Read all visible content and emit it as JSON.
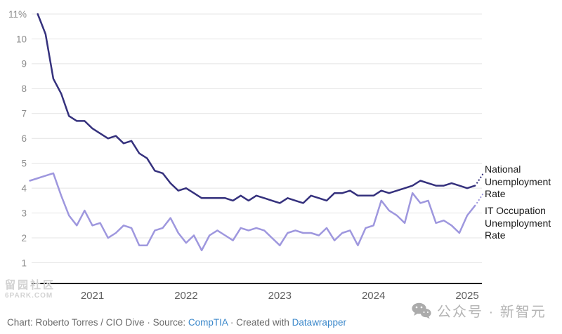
{
  "chart_data": {
    "type": "line",
    "title": "",
    "grid": "horizontal",
    "legend_position": "right-edge-labels",
    "x_tick_labels": [
      "2021",
      "2022",
      "2023",
      "2024",
      "2025"
    ],
    "y_axis": {
      "min": 1,
      "max": 11,
      "unit": "%",
      "ticks": [
        {
          "value": 11,
          "label": "11%"
        },
        {
          "value": 10,
          "label": "10"
        },
        {
          "value": 9,
          "label": "9"
        },
        {
          "value": 8,
          "label": "8"
        },
        {
          "value": 7,
          "label": "7"
        },
        {
          "value": 6,
          "label": "6"
        },
        {
          "value": 5,
          "label": "5"
        },
        {
          "value": 4,
          "label": "4"
        },
        {
          "value": 3,
          "label": "3"
        },
        {
          "value": 2,
          "label": "2"
        },
        {
          "value": 1,
          "label": "1"
        }
      ]
    },
    "x_ticks": [
      {
        "month_index": 8,
        "label": "2021"
      },
      {
        "month_index": 20,
        "label": "2022"
      },
      {
        "month_index": 32,
        "label": "2023"
      },
      {
        "month_index": 44,
        "label": "2024"
      },
      {
        "month_index": 56,
        "label": "2025"
      }
    ],
    "months": [
      "2020-05",
      "2020-06",
      "2020-07",
      "2020-08",
      "2020-09",
      "2020-10",
      "2020-11",
      "2020-12",
      "2021-01",
      "2021-02",
      "2021-03",
      "2021-04",
      "2021-05",
      "2021-06",
      "2021-07",
      "2021-08",
      "2021-09",
      "2021-10",
      "2021-11",
      "2021-12",
      "2022-01",
      "2022-02",
      "2022-03",
      "2022-04",
      "2022-05",
      "2022-06",
      "2022-07",
      "2022-08",
      "2022-09",
      "2022-10",
      "2022-11",
      "2022-12",
      "2023-01",
      "2023-02",
      "2023-03",
      "2023-04",
      "2023-05",
      "2023-06",
      "2023-07",
      "2023-08",
      "2023-09",
      "2023-10",
      "2023-11",
      "2023-12",
      "2024-01",
      "2024-02",
      "2024-03",
      "2024-04",
      "2024-05",
      "2024-06",
      "2024-07",
      "2024-08",
      "2024-09",
      "2024-10",
      "2024-11",
      "2024-12",
      "2025-01",
      "2025-02"
    ],
    "series": [
      {
        "name": "National Unemployment Rate",
        "color": "#35317D",
        "label_lines": [
          "National",
          "Unemployment",
          "Rate"
        ],
        "values": [
          null,
          11.0,
          10.2,
          8.4,
          7.8,
          6.9,
          6.7,
          6.7,
          6.4,
          6.2,
          6.0,
          6.1,
          5.8,
          5.9,
          5.4,
          5.2,
          4.7,
          4.6,
          4.2,
          3.9,
          4.0,
          3.8,
          3.6,
          3.6,
          3.6,
          3.6,
          3.5,
          3.7,
          3.5,
          3.7,
          3.6,
          3.5,
          3.4,
          3.6,
          3.5,
          3.4,
          3.7,
          3.6,
          3.5,
          3.8,
          3.8,
          3.9,
          3.7,
          3.7,
          3.7,
          3.9,
          3.8,
          3.9,
          4.0,
          4.1,
          4.3,
          4.2,
          4.1,
          4.1,
          4.2,
          4.1,
          4.0,
          4.1
        ]
      },
      {
        "name": "IT Occupation Unemployment Rate",
        "color": "#9E97DE",
        "label_lines": [
          "IT Occupation",
          "Unemployment",
          "Rate"
        ],
        "values": [
          4.3,
          4.4,
          4.5,
          4.6,
          3.7,
          2.9,
          2.5,
          3.1,
          2.5,
          2.6,
          2.0,
          2.2,
          2.5,
          2.4,
          1.7,
          1.7,
          2.3,
          2.4,
          2.8,
          2.2,
          1.8,
          2.1,
          1.5,
          2.1,
          2.3,
          2.1,
          1.9,
          2.4,
          2.3,
          2.4,
          2.3,
          2.0,
          1.7,
          2.2,
          2.3,
          2.2,
          2.2,
          2.1,
          2.4,
          1.9,
          2.2,
          2.3,
          1.7,
          2.4,
          2.5,
          3.5,
          3.1,
          2.9,
          2.6,
          3.8,
          3.4,
          3.5,
          2.6,
          2.7,
          2.5,
          2.2,
          2.9,
          3.3
        ]
      }
    ]
  },
  "footer": {
    "parts": [
      {
        "text": "Chart: Roberto Torres / CIO Dive · Source: ",
        "link": false
      },
      {
        "text": "CompTIA",
        "link": true
      },
      {
        "text": " · Created with ",
        "link": false
      },
      {
        "text": "Datawrapper",
        "link": true
      }
    ]
  },
  "watermarks": {
    "bottom_left_line1": "留园社区",
    "bottom_left_line2": "6PARK.COM",
    "bottom_right_text": "公众号 · 新智元"
  },
  "colors": {
    "background": "#ffffff",
    "gridline": "#e4e4e4",
    "axis_line": "#161616",
    "y_label": "#8c8c8c",
    "x_label": "#616161",
    "series_national": "#35317D",
    "series_it": "#9E97DE",
    "series_label_text": "#1a1a1a",
    "footer_text": "#696969",
    "footer_link": "#3a87ca",
    "watermark_left": "#d2d2d2",
    "watermark_right": "#b5b5b5"
  }
}
